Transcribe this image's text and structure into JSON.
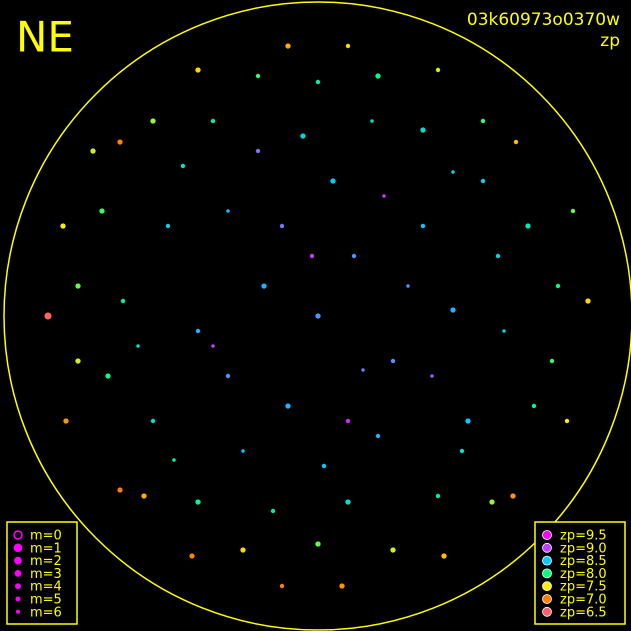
{
  "chart_data": {
    "type": "scatter",
    "title": "NE",
    "subtitle": "03k60973o0370w",
    "color_label": "zp",
    "xlim": [
      -1,
      1
    ],
    "ylim": [
      -1,
      1
    ],
    "size_legend": [
      {
        "value": 0,
        "label": "m=0"
      },
      {
        "value": 1,
        "label": "m=1"
      },
      {
        "value": 2,
        "label": "m=2"
      },
      {
        "value": 3,
        "label": "m=3"
      },
      {
        "value": 4,
        "label": "m=4"
      },
      {
        "value": 5,
        "label": "m=5"
      },
      {
        "value": 6,
        "label": "m=6"
      }
    ],
    "color_legend": [
      {
        "value": 9.5,
        "label": "zp=9.5",
        "color": "#ff00ff"
      },
      {
        "value": 9.0,
        "label": "zp=9.0",
        "color": "#c040ff"
      },
      {
        "value": 8.5,
        "label": "zp=8.5",
        "color": "#00ccff"
      },
      {
        "value": 8.0,
        "label": "zp=8.0",
        "color": "#00ff80"
      },
      {
        "value": 7.5,
        "label": "zp=7.5",
        "color": "#ffee00"
      },
      {
        "value": 7.0,
        "label": "zp=7.0",
        "color": "#ff8000"
      },
      {
        "value": 6.5,
        "label": "zp=6.5",
        "color": "#ff6070"
      }
    ],
    "points": {
      "x": [
        0.0,
        0.12,
        -0.18,
        0.25,
        -0.1,
        0.35,
        -0.3,
        0.05,
        -0.4,
        0.45,
        0.2,
        -0.25,
        0.5,
        -0.5,
        0.55,
        -0.05,
        -0.55,
        0.1,
        0.62,
        -0.65,
        0.35,
        -0.35,
        0.4,
        -0.4,
        0.7,
        -0.7,
        0.72,
        -0.72,
        0.0,
        0.0,
        0.2,
        -0.2,
        0.25,
        -0.25,
        0.8,
        -0.8,
        0.78,
        -0.8,
        0.55,
        -0.55,
        0.58,
        -0.58,
        0.85,
        -0.85,
        0.83,
        -0.84,
        0.4,
        -0.4,
        0.42,
        -0.42,
        0.1,
        -0.1,
        0.08,
        -0.12,
        0.9,
        -0.9,
        0.66,
        -0.66,
        0.65,
        -0.66,
        0.3,
        -0.12,
        0.15,
        -0.3,
        0.02,
        -0.6,
        0.6,
        -0.15,
        0.18,
        -0.45,
        0.45,
        0.48,
        -0.48,
        -0.02,
        0.22,
        -0.35,
        0.1,
        -0.2,
        0.38,
        -0.75
      ],
      "y": [
        0.0,
        0.2,
        0.1,
        -0.15,
        -0.3,
        0.3,
        0.35,
        0.45,
        -0.05,
        0.02,
        -0.4,
        -0.45,
        -0.35,
        0.3,
        0.45,
        0.6,
        -0.35,
        -0.62,
        -0.05,
        0.05,
        0.62,
        0.65,
        -0.6,
        -0.62,
        0.3,
        -0.2,
        -0.3,
        0.35,
        0.78,
        -0.76,
        0.8,
        0.8,
        -0.78,
        -0.78,
        0.1,
        0.1,
        -0.15,
        -0.15,
        0.65,
        0.65,
        -0.62,
        -0.6,
        0.35,
        0.3,
        -0.35,
        -0.35,
        0.82,
        0.82,
        -0.8,
        -0.8,
        0.9,
        0.9,
        -0.9,
        -0.9,
        0.05,
        0.0,
        0.58,
        0.58,
        -0.6,
        -0.58,
        0.1,
        0.3,
        -0.18,
        -0.2,
        -0.5,
        -0.1,
        0.2,
        -0.65,
        0.65,
        0.5,
        0.48,
        -0.45,
        -0.48,
        0.2,
        0.4,
        -0.1,
        -0.35,
        0.55,
        -0.2,
        0.55
      ],
      "zp": [
        8.7,
        8.7,
        8.6,
        8.7,
        8.6,
        8.5,
        8.6,
        8.5,
        8.6,
        8.6,
        8.6,
        8.5,
        8.5,
        8.4,
        8.4,
        8.4,
        8.3,
        8.3,
        8.4,
        8.2,
        8.3,
        8.2,
        8.2,
        8.1,
        8.2,
        8.0,
        8.1,
        7.9,
        8.1,
        7.8,
        8.0,
        7.9,
        7.6,
        7.4,
        8.0,
        7.8,
        7.9,
        7.6,
        7.9,
        7.7,
        7.7,
        7.2,
        7.8,
        7.5,
        7.5,
        7.1,
        7.6,
        7.4,
        7.3,
        7.0,
        7.4,
        7.2,
        7.1,
        7.0,
        7.4,
        6.6,
        7.3,
        7.0,
        7.1,
        6.9,
        8.7,
        8.8,
        8.8,
        8.7,
        8.5,
        8.3,
        8.4,
        8.2,
        8.3,
        8.3,
        8.4,
        8.3,
        8.1,
        9.0,
        9.0,
        9.0,
        9.2,
        8.8,
        8.9,
        7.6
      ],
      "m": [
        3,
        4,
        3,
        4,
        3,
        4,
        5,
        3,
        4,
        3,
        4,
        5,
        3,
        4,
        4,
        3,
        4,
        3,
        5,
        4,
        3,
        4,
        4,
        3,
        3,
        3,
        4,
        3,
        4,
        3,
        3,
        4,
        3,
        3,
        4,
        3,
        4,
        3,
        4,
        3,
        3,
        3,
        4,
        3,
        4,
        3,
        4,
        3,
        3,
        3,
        4,
        3,
        3,
        4,
        3,
        1,
        4,
        3,
        3,
        3,
        5,
        4,
        5,
        4,
        4,
        5,
        4,
        4,
        5,
        4,
        5,
        4,
        5,
        4,
        5,
        5,
        4,
        4,
        5,
        3
      ]
    }
  }
}
